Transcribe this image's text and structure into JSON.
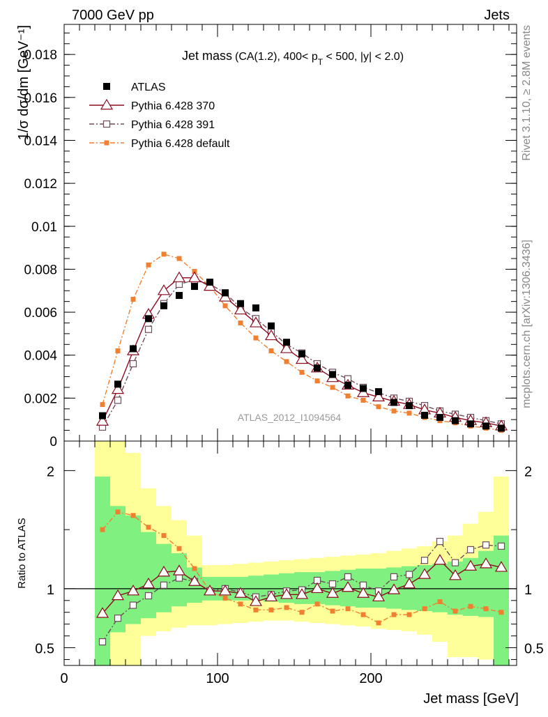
{
  "header": {
    "energy": "7000 GeV pp",
    "category": "Jets",
    "side_rivet": "Rivet 3.1.10, ≥ 2.8M events",
    "side_site": "mcplots.cern.ch [arXiv:1306.3436]",
    "watermark": "ATLAS_2012_I1094564"
  },
  "colors": {
    "atlas": "#000000",
    "p370": "#8b0a1e",
    "p391": "#6b4a5a",
    "pdef": "#f07f30",
    "band_inner": "#80f080",
    "band_outer": "#ffff99"
  },
  "chart_data": [
    {
      "id": "main",
      "type": "line",
      "title_main": "Jet mass",
      "title_cut1": "(CA(1.2), 400< p",
      "title_sub": "T",
      "title_cut2": " < 500, |y| < 2.0)",
      "ylabel": "1/σ dσ/dm [GeV⁻¹]",
      "xlim": [
        0,
        295
      ],
      "ylim": [
        0,
        0.0194
      ],
      "yticks": [
        0,
        0.002,
        0.004,
        0.006,
        0.008,
        0.01,
        0.012,
        0.014,
        0.016,
        0.018
      ],
      "ytick_labels": [
        "0",
        "0.002",
        "0.004",
        "0.006",
        "0.008",
        "0.01",
        "0.012",
        "0.014",
        "0.016",
        "0.018"
      ],
      "x": [
        25,
        35,
        45,
        55,
        65,
        75,
        85,
        95,
        105,
        115,
        125,
        135,
        145,
        155,
        165,
        175,
        185,
        195,
        205,
        215,
        225,
        235,
        245,
        255,
        265,
        275,
        285
      ],
      "series": [
        {
          "name": "ATLAS",
          "style": "data",
          "values": [
            0.00118,
            0.00265,
            0.0043,
            0.0057,
            0.0063,
            0.00678,
            0.0072,
            0.0074,
            0.0069,
            0.0064,
            0.0062,
            0.00536,
            0.0046,
            0.00406,
            0.0034,
            0.0031,
            0.0026,
            0.00245,
            0.0023,
            0.0018,
            0.00165,
            0.0012,
            0.0011,
            0.00095,
            0.0008,
            0.0007,
            0.0006
          ]
        },
        {
          "name": "Pythia 6.428 370",
          "style": "p370",
          "values": [
            0.00092,
            0.0024,
            0.0042,
            0.0059,
            0.007,
            0.0076,
            0.0076,
            0.0072,
            0.0067,
            0.0061,
            0.0055,
            0.0049,
            0.0043,
            0.0038,
            0.0034,
            0.00295,
            0.0026,
            0.00225,
            0.00205,
            0.00185,
            0.0017,
            0.00145,
            0.0013,
            0.0011,
            0.00095,
            0.00085,
            0.0007
          ]
        },
        {
          "name": "Pythia 6.428 391",
          "style": "p391",
          "values": [
            0.00065,
            0.0019,
            0.0036,
            0.0052,
            0.0064,
            0.0073,
            0.0075,
            0.0073,
            0.0069,
            0.0062,
            0.0057,
            0.0051,
            0.0045,
            0.0041,
            0.0036,
            0.0032,
            0.0029,
            0.0025,
            0.00225,
            0.002,
            0.00185,
            0.00165,
            0.0014,
            0.00125,
            0.0011,
            0.00095,
            0.0008
          ]
        },
        {
          "name": "Pythia 6.428 default",
          "style": "pdef",
          "values": [
            0.0017,
            0.0042,
            0.0066,
            0.0082,
            0.0087,
            0.0085,
            0.0079,
            0.0072,
            0.0063,
            0.0055,
            0.0048,
            0.0042,
            0.0037,
            0.0032,
            0.0028,
            0.0025,
            0.0021,
            0.0019,
            0.0016,
            0.0014,
            0.0013,
            0.0011,
            0.00095,
            0.00085,
            0.0007,
            0.0006,
            0.0005
          ]
        }
      ]
    },
    {
      "id": "ratio",
      "type": "line",
      "ylabel": "Ratio to ATLAS",
      "xlabel": "Jet mass [GeV]",
      "xlim": [
        0,
        295
      ],
      "ylim": [
        0.35,
        2.25
      ],
      "xticks": [
        0,
        100,
        200
      ],
      "xtick_labels": [
        "0",
        "100",
        "200"
      ],
      "yticks": [
        0.5,
        1,
        2
      ],
      "ytick_labels": [
        "0.5",
        "1",
        "2"
      ],
      "bin_edges": [
        20,
        30,
        40,
        50,
        60,
        70,
        80,
        90,
        100,
        110,
        120,
        130,
        140,
        150,
        160,
        170,
        180,
        190,
        200,
        210,
        220,
        230,
        240,
        250,
        260,
        270,
        280,
        290
      ],
      "band_inner": {
        "lower": [
          0.35,
          0.63,
          0.7,
          0.75,
          0.8,
          0.85,
          0.88,
          0.9,
          0.9,
          0.9,
          0.9,
          0.89,
          0.88,
          0.87,
          0.87,
          0.86,
          0.85,
          0.84,
          0.84,
          0.83,
          0.82,
          0.81,
          0.8,
          0.78,
          0.77,
          0.76,
          0.35
        ],
        "upper": [
          1.95,
          1.7,
          1.62,
          1.48,
          1.38,
          1.3,
          1.18,
          1.1,
          1.1,
          1.1,
          1.11,
          1.12,
          1.13,
          1.14,
          1.14,
          1.15,
          1.16,
          1.17,
          1.17,
          1.18,
          1.19,
          1.2,
          1.21,
          1.23,
          1.26,
          1.32,
          1.45
        ]
      },
      "band_outer": {
        "lower": [
          0.35,
          0.35,
          0.35,
          0.6,
          0.64,
          0.67,
          0.69,
          0.69,
          0.7,
          0.71,
          0.72,
          0.73,
          0.73,
          0.72,
          0.71,
          0.7,
          0.69,
          0.68,
          0.66,
          0.65,
          0.64,
          0.61,
          0.55,
          0.42,
          0.42,
          0.4,
          0.35
        ],
        "upper": [
          2.25,
          2.25,
          2.15,
          1.85,
          1.7,
          1.58,
          1.45,
          1.2,
          1.2,
          1.21,
          1.22,
          1.23,
          1.24,
          1.25,
          1.26,
          1.27,
          1.28,
          1.29,
          1.3,
          1.32,
          1.34,
          1.36,
          1.4,
          1.45,
          1.55,
          1.65,
          1.95
        ]
      },
      "series": [
        {
          "name": "Pythia 6.428 370",
          "style": "p370",
          "values": [
            0.79,
            0.94,
            0.98,
            1.04,
            1.14,
            1.15,
            1.06,
            0.98,
            0.98,
            0.96,
            0.89,
            0.93,
            0.95,
            0.95,
            1.0,
            0.96,
            1.01,
            0.96,
            0.93,
            0.99,
            1.04,
            1.12,
            1.24,
            1.11,
            1.19,
            1.21,
            1.18
          ]
        },
        {
          "name": "Pythia 6.428 391",
          "style": "p391",
          "values": [
            0.55,
            0.75,
            0.86,
            0.94,
            1.03,
            1.09,
            1.06,
            0.98,
            1.0,
            0.97,
            0.93,
            0.95,
            0.98,
            0.99,
            1.07,
            1.04,
            1.1,
            1.03,
            0.98,
            1.1,
            1.12,
            1.24,
            1.4,
            1.22,
            1.33,
            1.37,
            1.36
          ]
        },
        {
          "name": "Pythia 6.428 default",
          "style": "pdef",
          "values": [
            1.5,
            1.65,
            1.62,
            1.52,
            1.45,
            1.34,
            1.17,
            0.98,
            0.92,
            0.87,
            0.82,
            0.82,
            0.84,
            0.8,
            0.87,
            0.81,
            0.83,
            0.78,
            0.71,
            0.78,
            0.78,
            0.83,
            0.89,
            0.81,
            0.85,
            0.83,
            0.8
          ]
        }
      ]
    }
  ]
}
